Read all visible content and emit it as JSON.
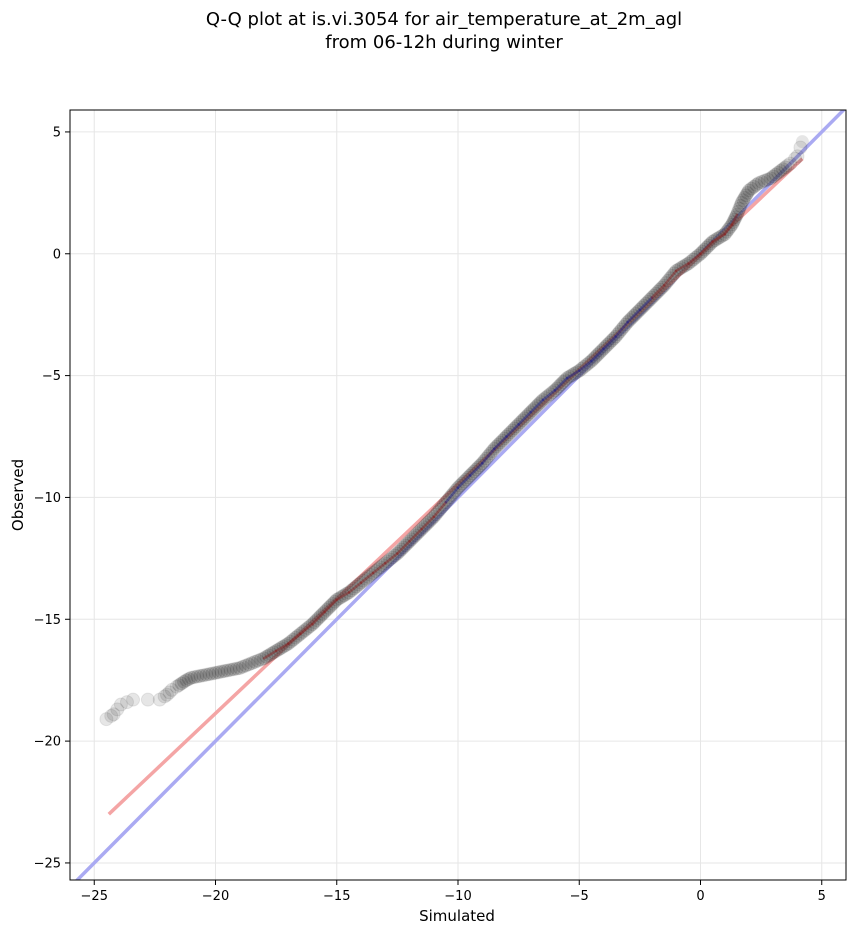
{
  "chart_data": {
    "type": "scatter",
    "title": "Q-Q plot at is.vi.3054 for air_temperature_at_2m_agl",
    "subtitle": "from 06-12h during winter",
    "xlabel": "Simulated",
    "ylabel": "Observed",
    "xlim": [
      -26,
      6
    ],
    "ylim": [
      -25.7,
      5.9
    ],
    "xticks": [
      -25,
      -20,
      -15,
      -10,
      -5,
      0,
      5
    ],
    "yticks": [
      -25,
      -20,
      -15,
      -10,
      -5,
      0,
      5
    ],
    "xtick_labels": [
      "−25",
      "−20",
      "−15",
      "−10",
      "−5",
      "0",
      "5"
    ],
    "ytick_labels": [
      "−25",
      "−20",
      "−15",
      "−10",
      "−5",
      "0",
      "5"
    ],
    "grid": true,
    "reference_line": {
      "from": [
        -26,
        -26
      ],
      "to": [
        6,
        6
      ],
      "color": "#aaaaf2"
    },
    "fit_line": {
      "from": [
        -24.4,
        -23.0
      ],
      "to": [
        4.2,
        3.9
      ],
      "color": "#f4a5a5"
    },
    "colors": {
      "points": "#333333",
      "points_edge": "#000000",
      "center_overlay": "#1a1a8c",
      "center_overlay_red": "#8c1a1a"
    },
    "quantile_points": [
      [
        -24.5,
        -19.1
      ],
      [
        -24.2,
        -18.9
      ],
      [
        -23.9,
        -18.5
      ],
      [
        -23.4,
        -18.3
      ],
      [
        -22.3,
        -18.3
      ],
      [
        -22.0,
        -18.1
      ],
      [
        -21.8,
        -17.9
      ],
      [
        -21.5,
        -17.7
      ],
      [
        -21.2,
        -17.5
      ],
      [
        -21.0,
        -17.4
      ],
      [
        -20.5,
        -17.3
      ],
      [
        -20.0,
        -17.2
      ],
      [
        -19.5,
        -17.1
      ],
      [
        -19.0,
        -17.0
      ],
      [
        -18.5,
        -16.8
      ],
      [
        -18.0,
        -16.6
      ],
      [
        -17.5,
        -16.3
      ],
      [
        -17.0,
        -16.0
      ],
      [
        -16.5,
        -15.6
      ],
      [
        -16.0,
        -15.2
      ],
      [
        -15.5,
        -14.7
      ],
      [
        -15.0,
        -14.2
      ],
      [
        -14.5,
        -13.9
      ],
      [
        -14.0,
        -13.5
      ],
      [
        -13.5,
        -13.1
      ],
      [
        -13.0,
        -12.7
      ],
      [
        -12.5,
        -12.3
      ],
      [
        -12.0,
        -11.8
      ],
      [
        -11.5,
        -11.3
      ],
      [
        -11.0,
        -10.8
      ],
      [
        -10.5,
        -10.2
      ],
      [
        -10.0,
        -9.6
      ],
      [
        -9.5,
        -9.1
      ],
      [
        -9.0,
        -8.6
      ],
      [
        -8.5,
        -8.0
      ],
      [
        -8.0,
        -7.5
      ],
      [
        -7.5,
        -7.0
      ],
      [
        -7.0,
        -6.5
      ],
      [
        -6.5,
        -6.0
      ],
      [
        -6.0,
        -5.6
      ],
      [
        -5.5,
        -5.1
      ],
      [
        -5.0,
        -4.8
      ],
      [
        -4.5,
        -4.4
      ],
      [
        -4.0,
        -3.9
      ],
      [
        -3.5,
        -3.4
      ],
      [
        -3.0,
        -2.8
      ],
      [
        -2.5,
        -2.3
      ],
      [
        -2.0,
        -1.8
      ],
      [
        -1.5,
        -1.3
      ],
      [
        -1.0,
        -0.7
      ],
      [
        -0.5,
        -0.4
      ],
      [
        0.0,
        0.0
      ],
      [
        0.5,
        0.5
      ],
      [
        1.0,
        0.8
      ],
      [
        1.3,
        1.2
      ],
      [
        1.5,
        1.6
      ],
      [
        1.7,
        2.1
      ],
      [
        2.0,
        2.6
      ],
      [
        2.4,
        2.9
      ],
      [
        2.9,
        3.1
      ],
      [
        3.3,
        3.4
      ],
      [
        3.7,
        3.7
      ],
      [
        4.0,
        4.0
      ],
      [
        4.2,
        4.6
      ]
    ]
  }
}
